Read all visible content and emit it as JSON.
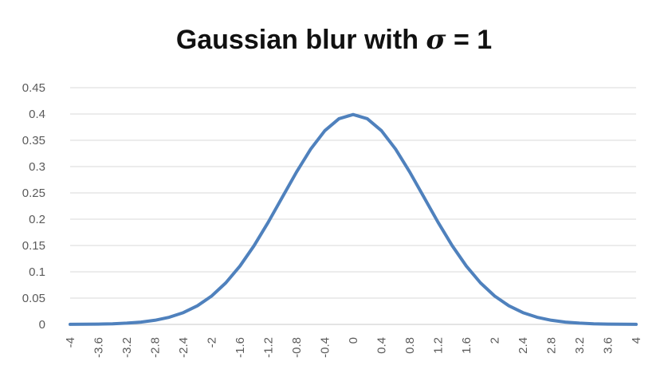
{
  "title": {
    "prefix": "Gaussian blur with ",
    "sigma": "σ",
    "suffix": " = 1"
  },
  "chart_data": {
    "type": "line",
    "title": "Gaussian blur with σ = 1",
    "xlabel": "",
    "ylabel": "",
    "ylim": [
      0,
      0.45
    ],
    "y_ticks": [
      "0",
      "0.05",
      "0.1",
      "0.15",
      "0.2",
      "0.25",
      "0.3",
      "0.35",
      "0.4",
      "0.45"
    ],
    "x_ticks": [
      "-4",
      "-3.6",
      "-3.2",
      "-2.8",
      "-2.4",
      "-2",
      "-1.6",
      "-1.2",
      "-0.8",
      "-0.4",
      "0",
      "0.4",
      "0.8",
      "1.2",
      "1.6",
      "2",
      "2.4",
      "2.8",
      "3.2",
      "3.6",
      "4"
    ],
    "grid": "horizontal",
    "legend": "none",
    "series": [
      {
        "color": "#4f81bd",
        "x": [
          -4,
          -3.8,
          -3.6,
          -3.4,
          -3.2,
          -3,
          -2.8,
          -2.6,
          -2.4,
          -2.2,
          -2,
          -1.8,
          -1.6,
          -1.4,
          -1.2,
          -1,
          -0.8,
          -0.6,
          -0.4,
          -0.2,
          0,
          0.2,
          0.4,
          0.6,
          0.8,
          1,
          1.2,
          1.4,
          1.6,
          1.8,
          2,
          2.2,
          2.4,
          2.6,
          2.8,
          3,
          3.2,
          3.4,
          3.6,
          3.8,
          4
        ],
        "y": [
          0.0001,
          0.0003,
          0.0006,
          0.0012,
          0.0024,
          0.0044,
          0.0079,
          0.0136,
          0.0224,
          0.0355,
          0.054,
          0.079,
          0.1109,
          0.1497,
          0.1942,
          0.242,
          0.2897,
          0.3332,
          0.3683,
          0.391,
          0.3989,
          0.391,
          0.3683,
          0.3332,
          0.2897,
          0.242,
          0.1942,
          0.1497,
          0.1109,
          0.079,
          0.054,
          0.0355,
          0.0224,
          0.0136,
          0.0079,
          0.0044,
          0.0024,
          0.0012,
          0.0006,
          0.0003,
          0.0001
        ]
      }
    ]
  }
}
